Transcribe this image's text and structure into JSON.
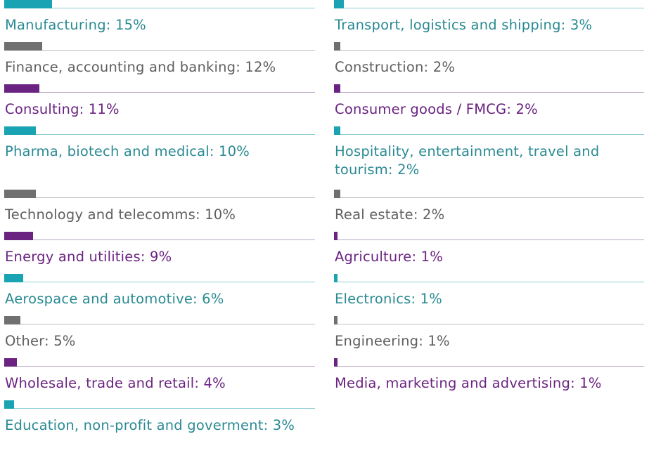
{
  "chart_data": {
    "type": "bar",
    "colors": {
      "teal": "#1aa3b2",
      "gray": "#707070",
      "purple": "#6b2381",
      "teal_text": "#2a8a93",
      "gray_text": "#5f5f5f",
      "purple_text": "#6b2381",
      "teal_rule": "#8fcdd4",
      "gray_rule": "#bdbdbd",
      "purple_rule": "#b9a6c8"
    },
    "columns": [
      [
        {
          "label": "Manufacturing: 15%",
          "value": 15,
          "color": "teal"
        },
        {
          "label": "Finance, accounting and banking: 12%",
          "value": 12,
          "color": "gray"
        },
        {
          "label": "Consulting: 11%",
          "value": 11,
          "color": "purple"
        },
        {
          "label": "Pharma, biotech and medical: 10%",
          "value": 10,
          "color": "teal"
        },
        {
          "label": "Technology and telecomms: 10%",
          "value": 10,
          "color": "gray"
        },
        {
          "label": "Energy and utilities: 9%",
          "value": 9,
          "color": "purple"
        },
        {
          "label": "Aerospace and automotive: 6%",
          "value": 6,
          "color": "teal"
        },
        {
          "label": "Other: 5%",
          "value": 5,
          "color": "gray"
        },
        {
          "label": "Wholesale, trade and retail: 4%",
          "value": 4,
          "color": "purple"
        },
        {
          "label": "Education, non-profit and goverment: 3%",
          "value": 3,
          "color": "teal"
        }
      ],
      [
        {
          "label": "Transport, logistics and shipping: 3%",
          "value": 3,
          "color": "teal"
        },
        {
          "label": "Construction: 2%",
          "value": 2,
          "color": "gray"
        },
        {
          "label": "Consumer goods / FMCG: 2%",
          "value": 2,
          "color": "purple"
        },
        {
          "label": "Hospitality, entertainment, travel and tourism: 2%",
          "value": 2,
          "color": "teal"
        },
        {
          "label": "Real estate: 2%",
          "value": 2,
          "color": "gray"
        },
        {
          "label": "Agriculture: 1%",
          "value": 1,
          "color": "purple"
        },
        {
          "label": "Electronics: 1%",
          "value": 1,
          "color": "teal"
        },
        {
          "label": "Engineering: 1%",
          "value": 1,
          "color": "gray"
        },
        {
          "label": "Media, marketing and advertising: 1%",
          "value": 1,
          "color": "purple"
        }
      ]
    ]
  }
}
